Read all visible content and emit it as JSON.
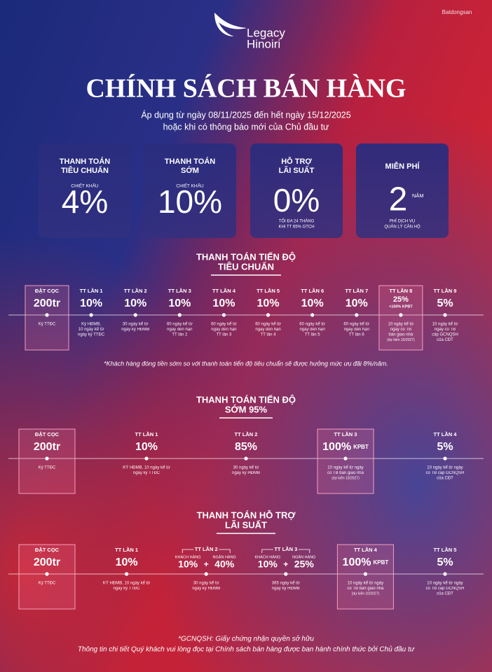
{
  "header": {
    "brand": "Legacy",
    "brand_sub": "Hinoiri",
    "watermark": "Batdongsan",
    "title": "CHÍNH SÁCH BÁN HÀNG",
    "subtitle": [
      "Áp dụng từ ngày 08/11/2025 đến hết ngày 15/12/2025",
      "hoặc khi có thông báo mới của Chủ đầu tư"
    ]
  },
  "cards": [
    {
      "title": [
        "THANH TOÁN",
        "TIÊU CHUẨN"
      ],
      "label": "CHIẾT KHẤU",
      "value": "4%"
    },
    {
      "title": [
        "THANH TOÁN",
        "SỚM"
      ],
      "label": "CHIẾT KHẤU",
      "value": "10%"
    },
    {
      "title": [
        "HỖ TRỢ",
        "LÃI SUẤT"
      ],
      "value": "0%",
      "note": [
        "TỐI ĐA 24 THÁNG",
        "KHI TT 65% GTCH"
      ]
    },
    {
      "title": [
        "MIỄN PHÍ"
      ],
      "value": "2",
      "unit": "NĂM",
      "note": [
        "PHÍ DỊCH VỤ",
        "QUẢN LÝ CĂN HỘ"
      ]
    }
  ],
  "sections": [
    {
      "title": [
        "THANH TOÁN TIẾN ĐỘ",
        "TIÊU CHUẨN"
      ],
      "steps": [
        {
          "label": "ĐẶT CỌC",
          "value": "200tr",
          "note": [
            "Ký TTĐC"
          ],
          "highlight": true
        },
        {
          "label": "TT LẦN 1",
          "value": "10%",
          "note": [
            "Ký HĐMB,",
            "10 ngày kể từ",
            "ngày ký TTĐC"
          ]
        },
        {
          "label": "TT LẦN 2",
          "value": "10%",
          "note": [
            "30 ngày kể từ",
            "ngày ký HĐMB"
          ]
        },
        {
          "label": "TT LẦN 3",
          "value": "10%",
          "note": [
            "60 ngày kể từ",
            "ngày đến hạn",
            "TT lần 2"
          ]
        },
        {
          "label": "TT LẦN 4",
          "value": "10%",
          "note": [
            "60 ngày kể từ",
            "ngày đến hạn",
            "TT lần 3"
          ]
        },
        {
          "label": "TT LẦN 5",
          "value": "10%",
          "note": [
            "60 ngày kể từ",
            "ngày đến hạn",
            "TT lần 4"
          ]
        },
        {
          "label": "TT LẦN 6",
          "value": "10%",
          "note": [
            "60 ngày kể từ",
            "ngày đến hạn",
            "TT lần 5"
          ]
        },
        {
          "label": "TT LẦN 7",
          "value": "10%",
          "note": [
            "60 ngày kể từ",
            "ngày đến hạn",
            "TT lần 6"
          ]
        },
        {
          "label": "TT LẦN 8",
          "value": "25%",
          "sub": "+100% KPBT",
          "note": [
            "10 ngày kể từ",
            "ngày có TB",
            "bàn giao nhà",
            "(dự kiến 10/2027)"
          ],
          "highlight": true
        },
        {
          "label": "TT LẦN 9",
          "value": "5%",
          "note": [
            "10 ngày kể từ",
            "ngày có TB",
            "cấp GCNQSH",
            "của CĐT"
          ]
        }
      ],
      "footnote": "*Khách hàng đóng tiền sớm so với thanh toán tiến độ tiêu chuẩn sẽ được hưởng mức ưu đãi 8%/năm."
    },
    {
      "title": [
        "THANH TOÁN TIẾN ĐỘ",
        "SỚM 95%"
      ],
      "steps": [
        {
          "label": "ĐẶT CỌC",
          "value": "200tr",
          "note": [
            "Ký TTĐC"
          ],
          "highlight": true
        },
        {
          "label": "TT LẦN 1",
          "value": "10%",
          "note": [
            "KÝ HĐMB, 10 ngày kể từ",
            "ngày ký TTĐC"
          ]
        },
        {
          "label": "TT LẦN 2",
          "value": "85%",
          "note": [
            "30 ngày kể từ",
            "ngày ký HĐMB"
          ]
        },
        {
          "label": "TT LẦN 3",
          "value": "100%",
          "suffix": "KPBT",
          "note": [
            "10 ngày kể từ ngày",
            "có TB bàn giao nhà",
            "(dự kiến 10/2027)"
          ],
          "highlight": true
        },
        {
          "label": "TT LẦN 4",
          "value": "5%",
          "note": [
            "10 ngày kể từ ngày",
            "có TB cấp GCNQSH",
            "của CĐT"
          ]
        }
      ]
    },
    {
      "title": [
        "THANH TOÁN HỖ TRỢ",
        "LÃI SUẤT"
      ],
      "steps": [
        {
          "label": "ĐẶT CỌC",
          "value": "200tr",
          "note": [
            "Ký TTĐC"
          ],
          "highlight": true
        },
        {
          "label": "TT LẦN 1",
          "value": "10%",
          "note": [
            "KÝ HĐMB, 10 ngày kể từ",
            "ngày ký TTĐC"
          ]
        },
        {
          "label": "TT LẦN 2",
          "parts": [
            {
              "label": "KHÁCH HÀNG",
              "value": "10%"
            },
            {
              "label": "NGÂN HÀNG",
              "value": "40%"
            }
          ],
          "joiner": "+",
          "note": [
            "30 ngày kể từ",
            "ngày ký HĐMB"
          ]
        },
        {
          "label": "TT LẦN 3",
          "parts": [
            {
              "label": "KHÁCH HÀNG",
              "value": "10%"
            },
            {
              "label": "NGÂN HÀNG",
              "value": "25%"
            }
          ],
          "joiner": "+",
          "note": [
            "365 ngày kể từ",
            "ngày ký HĐMB"
          ]
        },
        {
          "label": "TT LẦN 4",
          "value": "100%",
          "suffix": "KPBT",
          "note": [
            "10 ngày kể từ ngày",
            "có TB bàn giao nhà",
            "(dự kiến 10/2027)"
          ],
          "highlight": true
        },
        {
          "label": "TT LẦN 5",
          "value": "5%",
          "note": [
            "10 ngày kể từ ngày",
            "có TB cấp GCNQSH",
            "của CĐT"
          ]
        }
      ]
    }
  ],
  "footer": [
    "*GCNQSH: Giấy chứng nhận quyền sở hữu",
    "Thông tin chi tiết Quý khách vui lòng đọc tại Chính sách bán hàng được ban hành chính thức bởi Chủ đầu tư"
  ]
}
